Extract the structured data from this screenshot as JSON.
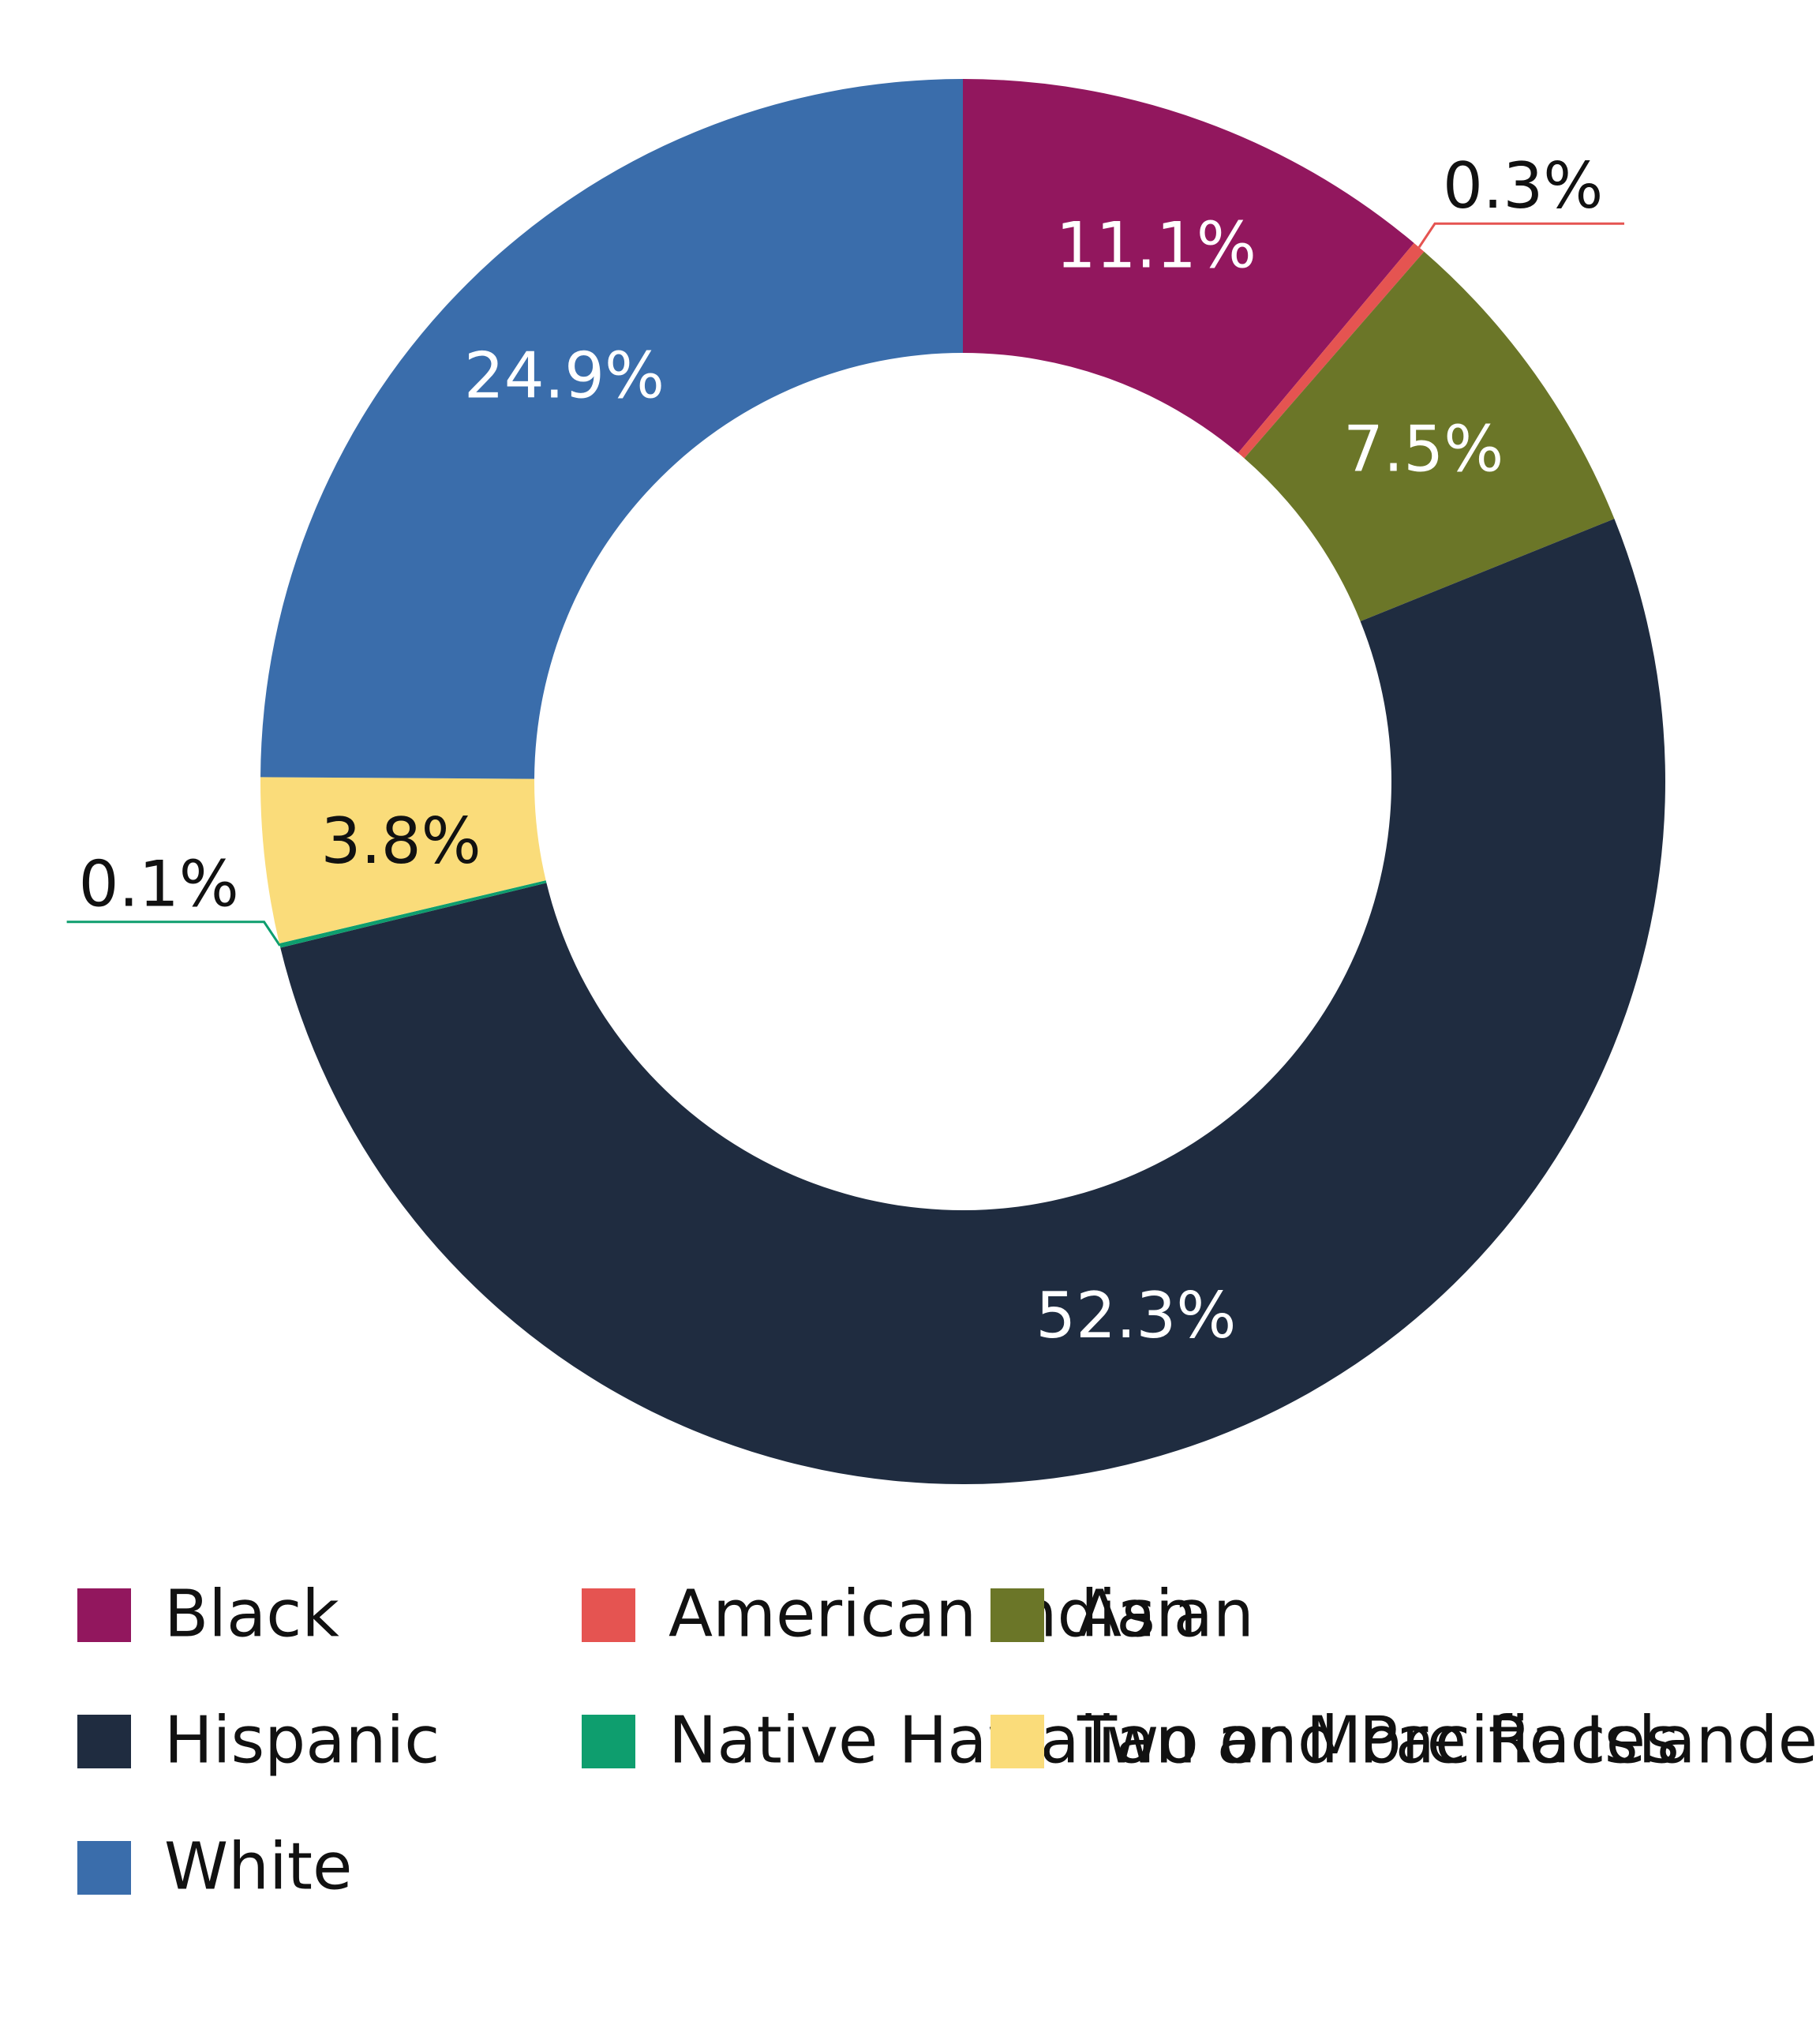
{
  "chart_data": {
    "type": "donut",
    "categories": [
      "Black",
      "American Indian",
      "Asian",
      "Hispanic",
      "Native Hawaiian and Pacific Islander",
      "Two or More Races",
      "White"
    ],
    "values": [
      11.1,
      0.3,
      7.5,
      52.3,
      0.1,
      3.8,
      24.9
    ],
    "value_labels": [
      "11.1%",
      "0.3%",
      "7.5%",
      "52.3%",
      "0.1%",
      "3.8%",
      "24.9%"
    ],
    "colors": [
      "#92175e",
      "#e55451",
      "#6b7628",
      "#1f2c40",
      "#0e9e6e",
      "#fadc7a",
      "#3a6dab"
    ],
    "legend": "bottom"
  }
}
